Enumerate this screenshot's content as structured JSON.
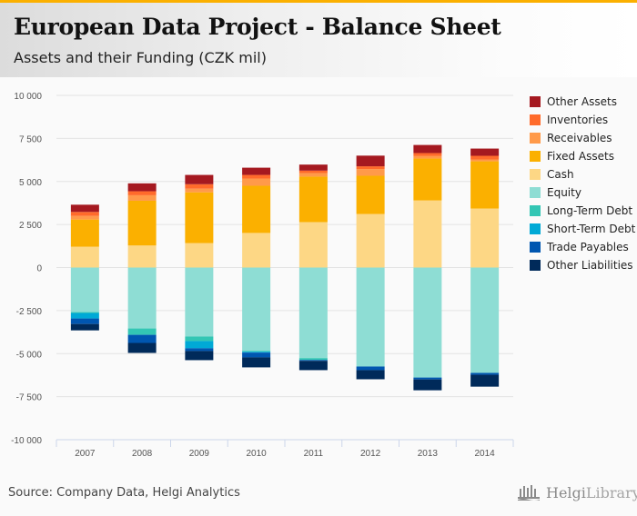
{
  "header": {
    "title": "European Data Project - Balance Sheet",
    "subtitle": "Assets and their Funding (CZK mil)"
  },
  "footer": {
    "source": "Source: Company Data, Helgi Analytics",
    "logo_bold": "Helgi",
    "logo_light": "Library."
  },
  "colors": {
    "accent_bar": "#fbb000"
  },
  "chart_data": {
    "type": "bar",
    "stacked": true,
    "title": "European Data Project - Balance Sheet",
    "subtitle": "Assets and their Funding (CZK mil)",
    "xlabel": "",
    "ylabel": "",
    "ylim": [
      -10000,
      10000
    ],
    "yticks": [
      10000,
      7500,
      5000,
      2500,
      0,
      -2500,
      -5000,
      -7500,
      -10000
    ],
    "ytick_labels": [
      "10 000",
      "7 500",
      "5 000",
      "2 500",
      "0",
      "-2 500",
      "-5 000",
      "-7 500",
      "-10 000"
    ],
    "grid": true,
    "legend_position": "right",
    "categories": [
      "2007",
      "2008",
      "2009",
      "2010",
      "2011",
      "2012",
      "2013",
      "2014"
    ],
    "series": [
      {
        "name": "Cash",
        "side": "assets",
        "color": "#fdd785",
        "values": [
          1210,
          1280,
          1420,
          2010,
          2640,
          3110,
          3900,
          3430
        ]
      },
      {
        "name": "Fixed Assets",
        "side": "assets",
        "color": "#fbb000",
        "values": [
          1580,
          2600,
          2950,
          2740,
          2640,
          2220,
          2430,
          2740
        ]
      },
      {
        "name": "Receivables",
        "side": "assets",
        "color": "#ff9a4a",
        "values": [
          210,
          320,
          210,
          420,
          210,
          390,
          160,
          110
        ]
      },
      {
        "name": "Inventories",
        "side": "assets",
        "color": "#ff6b2b",
        "values": [
          230,
          230,
          260,
          210,
          140,
          160,
          160,
          210
        ]
      },
      {
        "name": "Other Assets",
        "side": "assets",
        "color": "#a51920",
        "values": [
          420,
          460,
          540,
          420,
          350,
          620,
          470,
          420
        ]
      },
      {
        "name": "Equity",
        "side": "funding",
        "color": "#8eddd4",
        "values": [
          -2590,
          -3540,
          -4010,
          -4840,
          -5260,
          -5750,
          -6390,
          -6120
        ]
      },
      {
        "name": "Long-Term Debt",
        "side": "funding",
        "color": "#33c6b4",
        "values": [
          -50,
          -370,
          -260,
          -50,
          -110,
          0,
          0,
          0
        ]
      },
      {
        "name": "Short-Term Debt",
        "side": "funding",
        "color": "#00a9d6",
        "values": [
          -320,
          0,
          -420,
          -50,
          0,
          0,
          0,
          0
        ]
      },
      {
        "name": "Trade Payables",
        "side": "funding",
        "color": "#0056b0",
        "values": [
          -320,
          -470,
          -160,
          -280,
          -50,
          -210,
          -110,
          -110
        ]
      },
      {
        "name": "Other Liabilities",
        "side": "funding",
        "color": "#002a5a",
        "values": [
          -370,
          -580,
          -530,
          -580,
          -540,
          -530,
          -630,
          -690
        ]
      }
    ],
    "legend": [
      "Other Assets",
      "Inventories",
      "Receivables",
      "Fixed Assets",
      "Cash",
      "Equity",
      "Long-Term Debt",
      "Short-Term Debt",
      "Trade Payables",
      "Other Liabilities"
    ]
  }
}
